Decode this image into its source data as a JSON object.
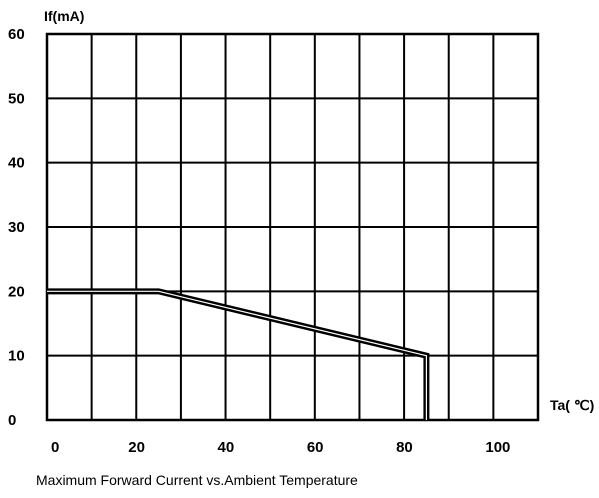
{
  "chart_data": {
    "type": "line",
    "title": "",
    "ylabel": "If(mA)",
    "xlabel": "Ta( ℃)",
    "caption": "Maximum Forward Current vs.Ambient Temperature",
    "xlim": [
      0,
      110
    ],
    "ylim": [
      0,
      60
    ],
    "x_tick_labels": [
      "0",
      "20",
      "40",
      "60",
      "80",
      "100"
    ],
    "y_tick_labels": [
      "0",
      "10",
      "20",
      "30",
      "40",
      "50",
      "60"
    ],
    "x_ticks": [
      0,
      20,
      40,
      60,
      80,
      100
    ],
    "y_ticks": [
      0,
      10,
      20,
      30,
      40,
      50,
      60
    ],
    "grid": true,
    "series": [
      {
        "x": [
          0,
          25,
          85,
          85
        ],
        "y": [
          20,
          20,
          10,
          0
        ]
      }
    ]
  }
}
